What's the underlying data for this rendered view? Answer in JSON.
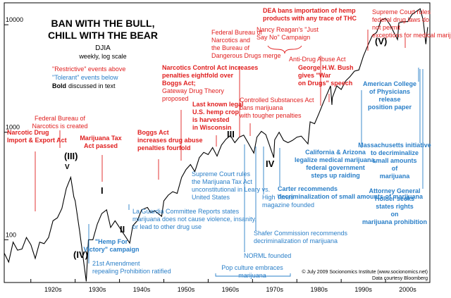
{
  "chart_data": {
    "type": "line",
    "title_lines": [
      "BAN WITH THE BULL,",
      "CHILL WITH THE BEAR"
    ],
    "series_name": "DJIA",
    "scale_note": "weekly, log scale",
    "legend": {
      "red": "\"Restrictive\" events above",
      "blue": "\"Tolerant\" events below",
      "bold_word": "Bold",
      "bold_rest": "discussed in text"
    },
    "y_axis": {
      "scale": "log",
      "ylim": [
        40,
        16000
      ],
      "ticks": [
        10000,
        1000,
        100
      ],
      "tick_labels": [
        "10000",
        "1000",
        "100"
      ]
    },
    "x_axis": {
      "xlim": [
        1914,
        2010
      ],
      "tick_labels": [
        "1920s",
        "1930s",
        "1940s",
        "1950s",
        "1960s",
        "1970s",
        "1980s",
        "1990s",
        "2000s"
      ]
    },
    "series": [
      {
        "name": "DJIA",
        "x": [
          1914,
          1915,
          1916,
          1917,
          1918,
          1919,
          1920,
          1921,
          1922,
          1923,
          1924,
          1925,
          1926,
          1927,
          1928,
          1929,
          1929.7,
          1930,
          1931,
          1932.5,
          1933,
          1934,
          1935,
          1936,
          1937.1,
          1938,
          1939,
          1940,
          1942.3,
          1943,
          1944,
          1945,
          1946.3,
          1947,
          1948,
          1949.5,
          1950,
          1951,
          1952,
          1953,
          1954,
          1955,
          1956,
          1957,
          1958,
          1959,
          1960,
          1961,
          1962,
          1963,
          1964,
          1965,
          1966,
          1967,
          1968,
          1969,
          1970.3,
          1971,
          1972,
          1973,
          1974.8,
          1975,
          1976,
          1977,
          1978,
          1979,
          1980,
          1981,
          1982.5,
          1983,
          1984,
          1985,
          1986,
          1987.6,
          1987.9,
          1988,
          1989,
          1990,
          1991,
          1992,
          1993,
          1994,
          1995,
          1996,
          1997,
          1998,
          1999,
          2000,
          2001,
          2002.7,
          2003,
          2004,
          2005,
          2006,
          2007.8,
          2008.5,
          2009.1,
          2009.5
        ],
        "values": [
          75,
          62,
          95,
          80,
          82,
          105,
          90,
          67,
          95,
          92,
          105,
          150,
          160,
          195,
          300,
          381,
          250,
          230,
          120,
          41,
          100,
          100,
          140,
          175,
          190,
          130,
          150,
          130,
          93,
          135,
          150,
          190,
          200,
          180,
          185,
          165,
          230,
          260,
          280,
          270,
          380,
          450,
          500,
          430,
          580,
          650,
          620,
          720,
          600,
          760,
          860,
          930,
          800,
          900,
          940,
          800,
          640,
          900,
          1020,
          950,
          580,
          850,
          1000,
          840,
          800,
          840,
          900,
          920,
          780,
          1250,
          1200,
          1500,
          1900,
          2700,
          1800,
          2100,
          2700,
          2500,
          3000,
          3300,
          3700,
          3800,
          5100,
          6400,
          7900,
          8500,
          11000,
          11500,
          10000,
          7300,
          10400,
          10700,
          10700,
          12500,
          14100,
          11000,
          6600,
          9500
        ]
      }
    ],
    "roman_labels": [
      "(III)",
      "I",
      "II",
      "(IV)",
      "III",
      "IV",
      "(V)",
      "V"
    ],
    "annotations_restrictive": [
      "Federal Bureau of Narcotics is created",
      "Narcotic Drug Import & Export Act",
      "Marijuana Tax Act passed",
      "Boggs Act increases drug abuse penalties fourfold",
      "Narcotics Control Act increases penalties eightfold over Boggs Act; Gateway Drug Theory proposed",
      "Last known legal U.S. hemp crop is harvested in Wisconsin",
      "Federal Bureau of Narcotics and the Bureau of Dangerous Drugs merge",
      "Controlled Substances Act bans marijuana with tougher penalties",
      "Nancy Reagan's \"Just Say No\" Campaign",
      "Anti-Drug Abuse Act",
      "George H.W. Bush gives \"War on Drugs\" speech",
      "DEA bans importation of hemp products with any trace of THC",
      "Supreme Court rules federal drug laws do not permit exceptions for medical marijuana"
    ],
    "annotations_tolerant": [
      "\"Hemp For Victory\" campaign",
      "21st Amendment repealing Prohibition ratified",
      "La Guardia Committee Reports states marijuana does not cause violence, insanity, or lead to other drug use",
      "Supreme Court rules the Marijuana Tax Act unconstitutional in Leary vs. United States",
      "NORML founded",
      "Shafer Commission recommends decriminalization of marijuana",
      "High Times magazine founded",
      "Carter recommends decriminalization of small amounts of marijuana",
      "Pop culture embraces marijuana",
      "California & Arizona legalize medical marijuana, federal government steps up raiding",
      "American College of Physicians release position paper",
      "Massachusetts initiative to decriminalize small amounts of marijuana",
      "Attorney General Holder seeks states rights on marijuana prohibition"
    ],
    "credits": [
      "© July 2009 Socionomics Institute (www.socionomics.net)",
      "Data courtesy Bloomberg"
    ],
    "colors": {
      "restrictive": "#e02020",
      "tolerant": "#2a7fc8",
      "line": "#000000",
      "text": "#000000"
    }
  }
}
